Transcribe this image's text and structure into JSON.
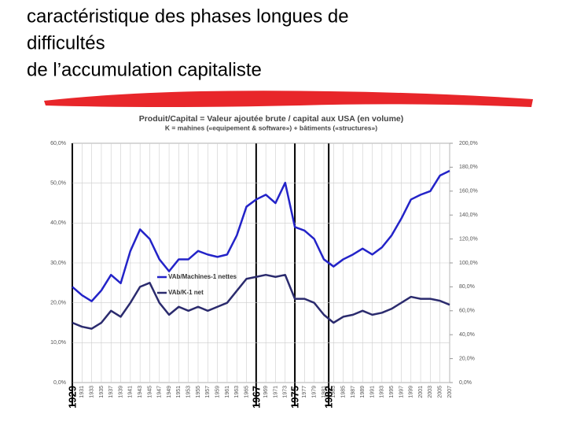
{
  "slide_title_lines": [
    "caractéristique des phases longues de",
    "difficultés",
    "de l’accumulation capitaliste"
  ],
  "chart_data": {
    "type": "line",
    "title": "Produit/Capital = Valeur ajoutée brute / capital aux USA (en volume)",
    "subtitle": "K = mahines («equipement & software») + bâtiments («structures»)",
    "x": [
      1929,
      1931,
      1933,
      1935,
      1937,
      1939,
      1941,
      1943,
      1945,
      1947,
      1949,
      1951,
      1953,
      1955,
      1957,
      1959,
      1961,
      1963,
      1965,
      1967,
      1969,
      1971,
      1973,
      1975,
      1977,
      1979,
      1981,
      1983,
      1985,
      1987,
      1989,
      1991,
      1993,
      1995,
      1997,
      1999,
      2001,
      2003,
      2005,
      2007
    ],
    "xlim": [
      1929,
      2007
    ],
    "xticks": [
      1929,
      1931,
      1933,
      1935,
      1937,
      1939,
      1941,
      1943,
      1945,
      1947,
      1949,
      1951,
      1953,
      1955,
      1957,
      1959,
      1961,
      1963,
      1965,
      1967,
      1969,
      1971,
      1973,
      1975,
      1977,
      1979,
      1981,
      1983,
      1985,
      1987,
      1989,
      1991,
      1993,
      1995,
      1997,
      1999,
      2001,
      2003,
      2005,
      2007
    ],
    "highlight_years": [
      1929,
      1967,
      1975,
      1982
    ],
    "ylim": [
      0,
      60
    ],
    "yticks": [
      {
        "value": 0,
        "label": "0,0%"
      },
      {
        "value": 10,
        "label": "10,0%"
      },
      {
        "value": 20,
        "label": "20,0%"
      },
      {
        "value": 30,
        "label": "30,0%"
      },
      {
        "value": 40,
        "label": "40,0%"
      },
      {
        "value": 50,
        "label": "50,0%"
      },
      {
        "value": 60,
        "label": "60,0%"
      }
    ],
    "y2lim": [
      0,
      200
    ],
    "y2ticks": [
      {
        "value": 0,
        "label": "0,0%"
      },
      {
        "value": 20,
        "label": "20,0%"
      },
      {
        "value": 40,
        "label": "40,0%"
      },
      {
        "value": 60,
        "label": "60,0%"
      },
      {
        "value": 80,
        "label": "80,0%"
      },
      {
        "value": 100,
        "label": "100,0%"
      },
      {
        "value": 120,
        "label": "120,0%"
      },
      {
        "value": 140,
        "label": "140,0%"
      },
      {
        "value": 160,
        "label": "160,0%"
      },
      {
        "value": 180,
        "label": "180,0%"
      },
      {
        "value": 200,
        "label": "200,0%"
      }
    ],
    "grid": true,
    "series": [
      {
        "name": "VAb/Machines-1 nettes",
        "color": "#2323c8",
        "axis": "y2",
        "values": [
          80,
          73,
          68,
          77,
          90,
          83,
          110,
          128,
          120,
          103,
          93,
          103,
          103,
          110,
          107,
          105,
          107,
          123,
          147,
          153,
          157,
          150,
          167,
          130,
          127,
          120,
          103,
          97,
          103,
          107,
          112,
          107,
          113,
          123,
          137,
          153,
          157,
          160,
          173,
          177
        ]
      },
      {
        "name": "VAb/K-1 net",
        "color": "#2b2b6e",
        "values": [
          15,
          14,
          13.5,
          15,
          18,
          16.5,
          20,
          24,
          25,
          20,
          17,
          19,
          18,
          19,
          18,
          19,
          20,
          23,
          26,
          26.5,
          27,
          26.5,
          27,
          21,
          21,
          20,
          17,
          15,
          16.5,
          17,
          18,
          17,
          17.5,
          18.5,
          20,
          21.5,
          21,
          21,
          20.5,
          19.5
        ]
      }
    ]
  }
}
